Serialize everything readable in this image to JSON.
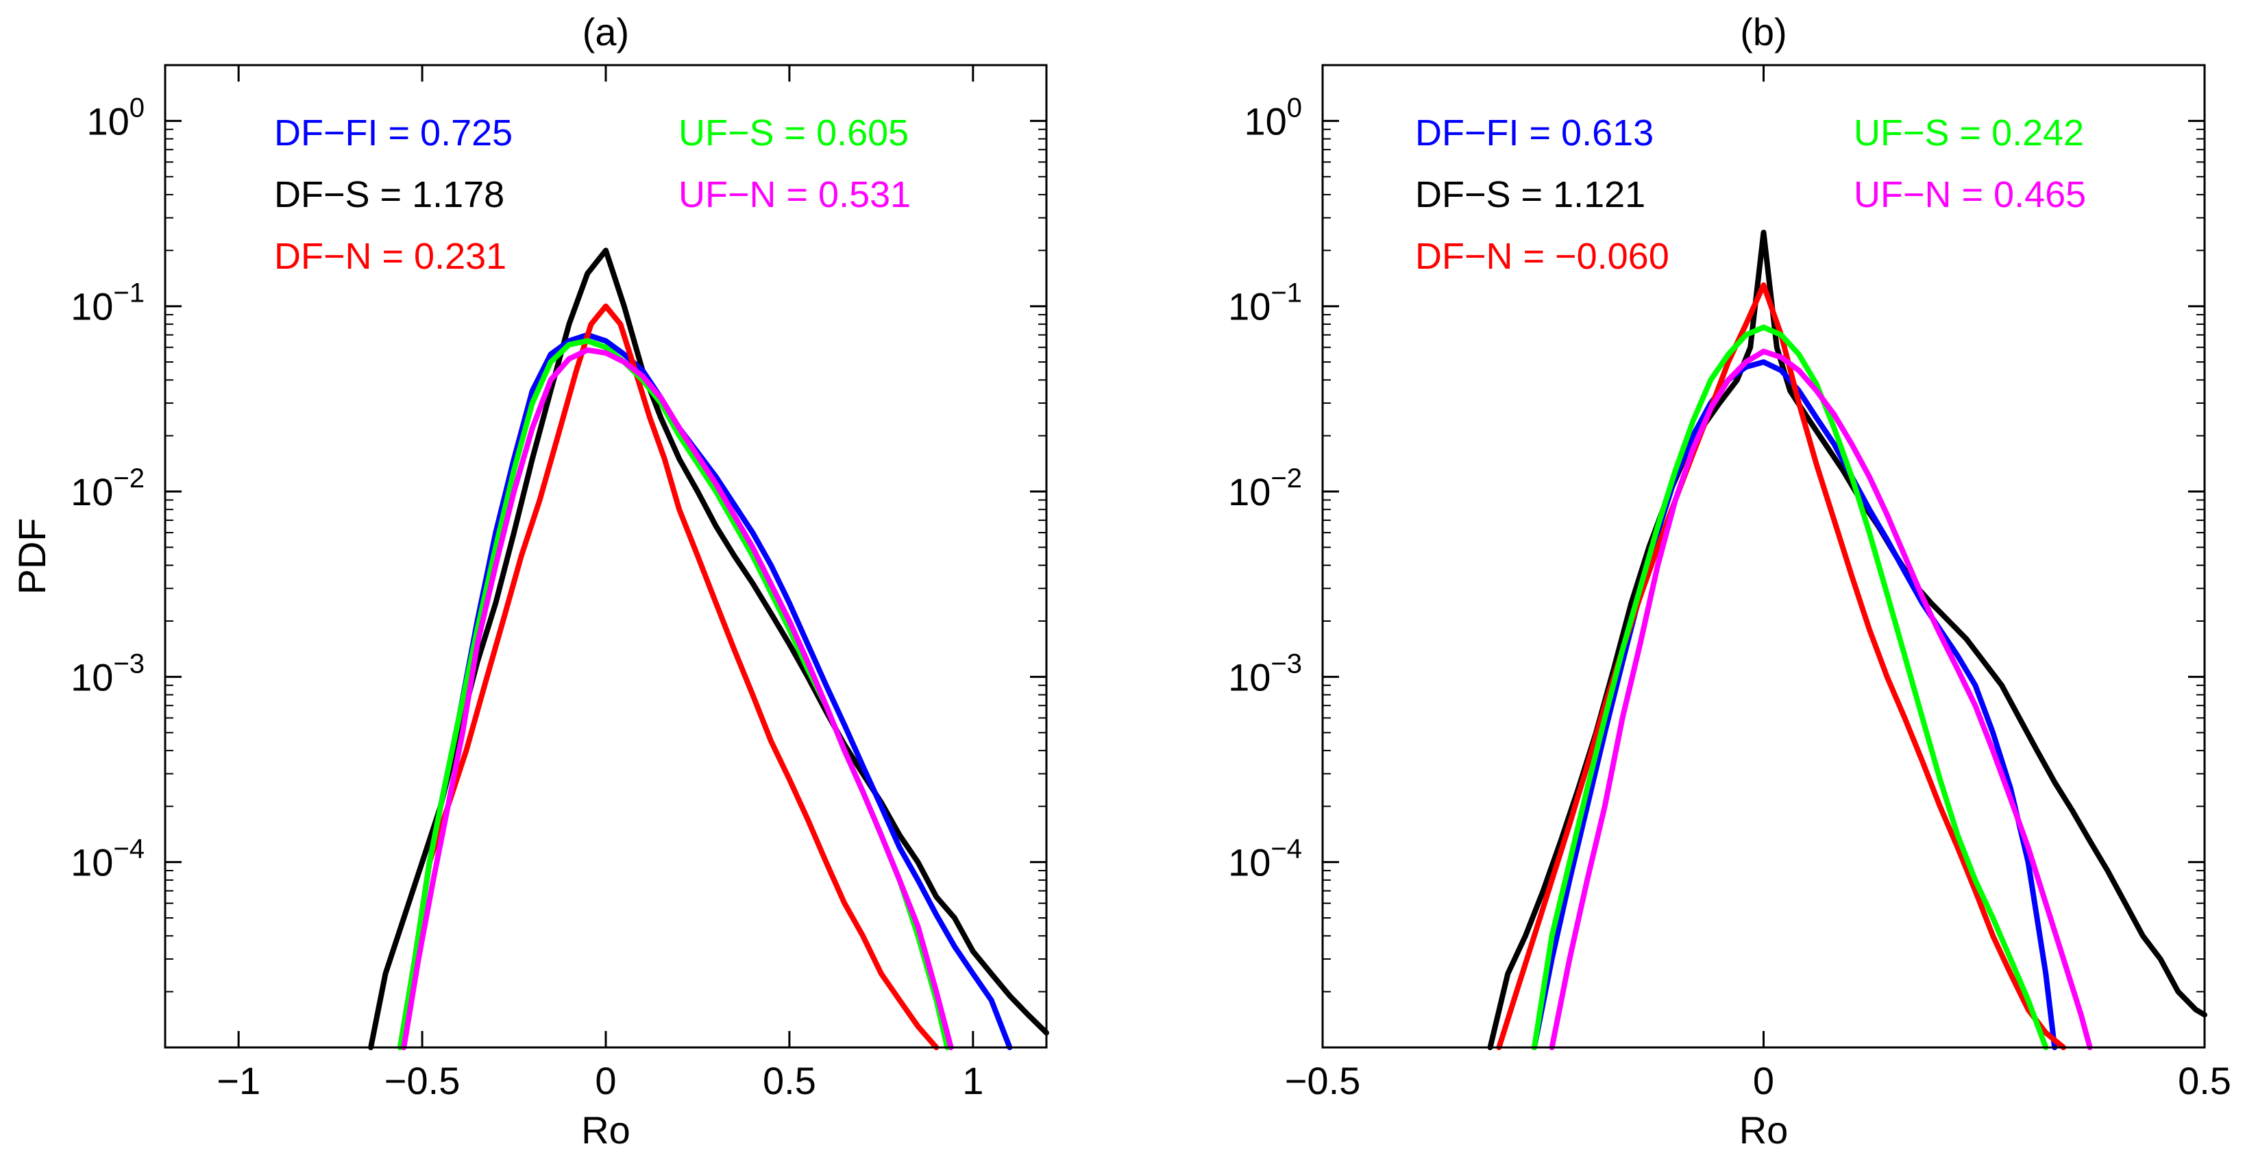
{
  "figure": {
    "ylabel": "PDF",
    "xlabel": "Ro"
  },
  "colors": {
    "DF-FI": "#0000ff",
    "DF-S": "#000000",
    "DF-N": "#ff0000",
    "UF-S": "#00ff00",
    "UF-N": "#ff00ff"
  },
  "chart_data": [
    {
      "type": "line",
      "panel": "a",
      "title": "(a)",
      "xlabel": "Ro",
      "ylabel": "PDF",
      "yscale": "log",
      "xlim": [
        -1.2,
        1.2
      ],
      "ylim": [
        1e-05,
        2
      ],
      "xticks": [
        -1,
        -0.5,
        0,
        0.5,
        1
      ],
      "xtick_labels": [
        "−1",
        "−0.5",
        "0",
        "0.5",
        "1"
      ],
      "ytick_exponents": [
        0,
        -1,
        -2,
        -3,
        -4
      ],
      "annotations": [
        {
          "text": "DF−FI = 0.725",
          "series": "DF-FI",
          "col": 0,
          "row": 0
        },
        {
          "text": "DF−S = 1.178",
          "series": "DF-S",
          "col": 0,
          "row": 1
        },
        {
          "text": "DF−N = 0.231",
          "series": "DF-N",
          "col": 0,
          "row": 2
        },
        {
          "text": "UF−S = 0.605",
          "series": "UF-S",
          "col": 1,
          "row": 0
        },
        {
          "text": "UF−N = 0.531",
          "series": "UF-N",
          "col": 1,
          "row": 1
        }
      ],
      "series": [
        {
          "name": "DF-S",
          "x": [
            -0.64,
            -0.6,
            -0.55,
            -0.5,
            -0.45,
            -0.4,
            -0.35,
            -0.3,
            -0.25,
            -0.2,
            -0.15,
            -0.1,
            -0.05,
            0,
            0.05,
            0.1,
            0.15,
            0.2,
            0.25,
            0.3,
            0.35,
            0.4,
            0.45,
            0.5,
            0.55,
            0.6,
            0.65,
            0.7,
            0.75,
            0.8,
            0.85,
            0.9,
            0.95,
            1.0,
            1.05,
            1.1,
            1.15,
            1.2
          ],
          "y": [
            1e-05,
            2.5e-05,
            5e-05,
            0.0001,
            0.0002,
            0.0005,
            0.0012,
            0.0025,
            0.006,
            0.015,
            0.035,
            0.08,
            0.15,
            0.2,
            0.1,
            0.045,
            0.025,
            0.015,
            0.01,
            0.0065,
            0.0045,
            0.0032,
            0.0022,
            0.0015,
            0.001,
            0.00065,
            0.00043,
            0.0003,
            0.00021,
            0.00014,
            0.0001,
            6.5e-05,
            5e-05,
            3.3e-05,
            2.5e-05,
            1.9e-05,
            1.5e-05,
            1.2e-05
          ]
        },
        {
          "name": "DF-FI",
          "x": [
            -0.56,
            -0.52,
            -0.48,
            -0.45,
            -0.4,
            -0.35,
            -0.3,
            -0.25,
            -0.2,
            -0.15,
            -0.1,
            -0.05,
            0,
            0.05,
            0.1,
            0.15,
            0.2,
            0.3,
            0.4,
            0.45,
            0.5,
            0.55,
            0.6,
            0.65,
            0.7,
            0.75,
            0.8,
            0.85,
            0.9,
            0.95,
            1.0,
            1.05,
            1.1
          ],
          "y": [
            1e-05,
            3e-05,
            0.0001,
            0.0002,
            0.0006,
            0.002,
            0.006,
            0.015,
            0.035,
            0.055,
            0.065,
            0.07,
            0.065,
            0.055,
            0.045,
            0.032,
            0.022,
            0.012,
            0.006,
            0.004,
            0.0025,
            0.0015,
            0.0009,
            0.00055,
            0.00033,
            0.0002,
            0.00012,
            8e-05,
            5.2e-05,
            3.5e-05,
            2.5e-05,
            1.8e-05,
            1e-05
          ]
        },
        {
          "name": "DF-N",
          "x": [
            -0.56,
            -0.52,
            -0.48,
            -0.43,
            -0.38,
            -0.33,
            -0.28,
            -0.23,
            -0.18,
            -0.13,
            -0.08,
            -0.04,
            0,
            0.04,
            0.08,
            0.12,
            0.16,
            0.2,
            0.25,
            0.3,
            0.35,
            0.4,
            0.45,
            0.5,
            0.55,
            0.6,
            0.65,
            0.7,
            0.75,
            0.8,
            0.85,
            0.9
          ],
          "y": [
            1e-05,
            3e-05,
            0.0001,
            0.0002,
            0.0004,
            0.0009,
            0.002,
            0.0045,
            0.009,
            0.02,
            0.045,
            0.08,
            0.1,
            0.08,
            0.045,
            0.025,
            0.015,
            0.008,
            0.0045,
            0.0025,
            0.0014,
            0.0008,
            0.00045,
            0.00028,
            0.00017,
            0.0001,
            6e-05,
            4e-05,
            2.5e-05,
            1.8e-05,
            1.3e-05,
            1e-05
          ]
        },
        {
          "name": "UF-S",
          "x": [
            -0.56,
            -0.52,
            -0.48,
            -0.44,
            -0.4,
            -0.35,
            -0.3,
            -0.25,
            -0.2,
            -0.15,
            -0.1,
            -0.05,
            0,
            0.05,
            0.1,
            0.15,
            0.2,
            0.3,
            0.4,
            0.5,
            0.55,
            0.6,
            0.65,
            0.7,
            0.75,
            0.8,
            0.85,
            0.9,
            0.93
          ],
          "y": [
            1e-05,
            3e-05,
            0.0001,
            0.00025,
            0.0006,
            0.0018,
            0.005,
            0.013,
            0.03,
            0.05,
            0.062,
            0.065,
            0.06,
            0.05,
            0.04,
            0.03,
            0.02,
            0.01,
            0.0045,
            0.0018,
            0.0011,
            0.0007,
            0.0004,
            0.00024,
            0.00014,
            8e-05,
            4e-05,
            1.8e-05,
            1e-05
          ]
        },
        {
          "name": "UF-N",
          "x": [
            -0.55,
            -0.51,
            -0.47,
            -0.43,
            -0.39,
            -0.35,
            -0.3,
            -0.25,
            -0.2,
            -0.15,
            -0.1,
            -0.05,
            0,
            0.05,
            0.1,
            0.15,
            0.2,
            0.3,
            0.4,
            0.5,
            0.55,
            0.6,
            0.65,
            0.7,
            0.75,
            0.8,
            0.85,
            0.9,
            0.94
          ],
          "y": [
            1e-05,
            3e-05,
            8e-05,
            0.0002,
            0.0005,
            0.0015,
            0.004,
            0.01,
            0.022,
            0.04,
            0.052,
            0.058,
            0.056,
            0.05,
            0.042,
            0.032,
            0.022,
            0.011,
            0.005,
            0.002,
            0.0012,
            0.0007,
            0.0004,
            0.00024,
            0.00014,
            8e-05,
            4.5e-05,
            2e-05,
            1e-05
          ]
        }
      ]
    },
    {
      "type": "line",
      "panel": "b",
      "title": "(b)",
      "xlabel": "Ro",
      "ylabel": "",
      "yscale": "log",
      "xlim": [
        -0.5,
        0.5
      ],
      "ylim": [
        1e-05,
        2
      ],
      "xticks": [
        -0.5,
        0,
        0.5
      ],
      "xtick_labels": [
        "−0.5",
        "0",
        "0.5"
      ],
      "ytick_exponents": [
        0,
        -1,
        -2,
        -3,
        -4
      ],
      "annotations": [
        {
          "text": "DF−FI = 0.613",
          "series": "DF-FI",
          "col": 0,
          "row": 0
        },
        {
          "text": "DF−S = 1.121",
          "series": "DF-S",
          "col": 0,
          "row": 1
        },
        {
          "text": "DF−N = −0.060",
          "series": "DF-N",
          "col": 0,
          "row": 2
        },
        {
          "text": "UF−S = 0.242",
          "series": "UF-S",
          "col": 1,
          "row": 0
        },
        {
          "text": "UF−N = 0.465",
          "series": "UF-N",
          "col": 1,
          "row": 1
        }
      ],
      "series": [
        {
          "name": "DF-S",
          "x": [
            -0.31,
            -0.29,
            -0.27,
            -0.25,
            -0.23,
            -0.21,
            -0.19,
            -0.17,
            -0.15,
            -0.13,
            -0.11,
            -0.09,
            -0.07,
            -0.05,
            -0.03,
            -0.015,
            0,
            0.015,
            0.03,
            0.05,
            0.07,
            0.09,
            0.11,
            0.13,
            0.15,
            0.17,
            0.19,
            0.21,
            0.23,
            0.25,
            0.27,
            0.29,
            0.31,
            0.33,
            0.35,
            0.37,
            0.39,
            0.41,
            0.43,
            0.45,
            0.47,
            0.49,
            0.5
          ],
          "y": [
            1e-05,
            2.5e-05,
            4e-05,
            7e-05,
            0.00013,
            0.00025,
            0.0005,
            0.0011,
            0.0025,
            0.005,
            0.009,
            0.015,
            0.022,
            0.03,
            0.04,
            0.06,
            0.25,
            0.06,
            0.035,
            0.025,
            0.018,
            0.013,
            0.009,
            0.0065,
            0.0045,
            0.0032,
            0.0025,
            0.002,
            0.0016,
            0.0012,
            0.0009,
            0.0006,
            0.0004,
            0.00027,
            0.00019,
            0.00013,
            9e-05,
            6e-05,
            4e-05,
            3e-05,
            2e-05,
            1.6e-05,
            1.5e-05
          ]
        },
        {
          "name": "DF-FI",
          "x": [
            -0.26,
            -0.24,
            -0.22,
            -0.2,
            -0.18,
            -0.16,
            -0.14,
            -0.12,
            -0.1,
            -0.08,
            -0.06,
            -0.04,
            -0.02,
            0,
            0.02,
            0.04,
            0.06,
            0.08,
            0.1,
            0.12,
            0.14,
            0.16,
            0.18,
            0.2,
            0.22,
            0.24,
            0.26,
            0.28,
            0.3,
            0.31,
            0.32,
            0.33
          ],
          "y": [
            1e-05,
            3e-05,
            8e-05,
            0.0002,
            0.0005,
            0.0012,
            0.0028,
            0.006,
            0.012,
            0.02,
            0.03,
            0.04,
            0.047,
            0.05,
            0.045,
            0.035,
            0.025,
            0.018,
            0.012,
            0.008,
            0.0055,
            0.0037,
            0.0025,
            0.0018,
            0.0013,
            0.0009,
            0.0005,
            0.00025,
            0.0001,
            5e-05,
            2.5e-05,
            1e-05
          ]
        },
        {
          "name": "DF-N",
          "x": [
            -0.3,
            -0.28,
            -0.26,
            -0.24,
            -0.22,
            -0.2,
            -0.18,
            -0.16,
            -0.14,
            -0.12,
            -0.1,
            -0.08,
            -0.06,
            -0.04,
            -0.02,
            0,
            0.02,
            0.04,
            0.06,
            0.08,
            0.1,
            0.12,
            0.14,
            0.16,
            0.18,
            0.2,
            0.22,
            0.24,
            0.26,
            0.28,
            0.3,
            0.32,
            0.34
          ],
          "y": [
            1e-05,
            2e-05,
            4e-05,
            8e-05,
            0.00016,
            0.00033,
            0.0007,
            0.0014,
            0.0027,
            0.005,
            0.009,
            0.016,
            0.028,
            0.05,
            0.08,
            0.13,
            0.07,
            0.03,
            0.014,
            0.007,
            0.0035,
            0.0018,
            0.001,
            0.0006,
            0.00035,
            0.0002,
            0.00012,
            7e-05,
            4e-05,
            2.5e-05,
            1.6e-05,
            1.2e-05,
            1e-05
          ]
        },
        {
          "name": "UF-S",
          "x": [
            -0.26,
            -0.24,
            -0.22,
            -0.2,
            -0.18,
            -0.16,
            -0.14,
            -0.12,
            -0.1,
            -0.08,
            -0.06,
            -0.04,
            -0.02,
            0,
            0.02,
            0.04,
            0.06,
            0.08,
            0.1,
            0.12,
            0.14,
            0.16,
            0.18,
            0.2,
            0.22,
            0.24,
            0.26,
            0.28,
            0.3,
            0.32
          ],
          "y": [
            1e-05,
            4e-05,
            0.0001,
            0.00025,
            0.0006,
            0.0014,
            0.003,
            0.0065,
            0.013,
            0.024,
            0.04,
            0.055,
            0.07,
            0.077,
            0.07,
            0.055,
            0.038,
            0.022,
            0.012,
            0.006,
            0.0028,
            0.0013,
            0.0006,
            0.00028,
            0.00014,
            8e-05,
            5e-05,
            3e-05,
            1.8e-05,
            1e-05
          ]
        },
        {
          "name": "UF-N",
          "x": [
            -0.24,
            -0.22,
            -0.2,
            -0.18,
            -0.16,
            -0.14,
            -0.12,
            -0.1,
            -0.08,
            -0.06,
            -0.04,
            -0.02,
            0,
            0.02,
            0.04,
            0.06,
            0.08,
            0.1,
            0.12,
            0.14,
            0.16,
            0.18,
            0.2,
            0.22,
            0.24,
            0.26,
            0.28,
            0.3,
            0.32,
            0.34,
            0.36,
            0.37
          ],
          "y": [
            1e-05,
            3e-05,
            8e-05,
            0.0002,
            0.0006,
            0.0015,
            0.004,
            0.009,
            0.017,
            0.028,
            0.04,
            0.05,
            0.057,
            0.053,
            0.045,
            0.035,
            0.026,
            0.018,
            0.012,
            0.0075,
            0.0045,
            0.0027,
            0.0017,
            0.0011,
            0.0007,
            0.0004,
            0.00022,
            0.00012,
            6e-05,
            3e-05,
            1.5e-05,
            1e-05
          ]
        }
      ]
    }
  ]
}
